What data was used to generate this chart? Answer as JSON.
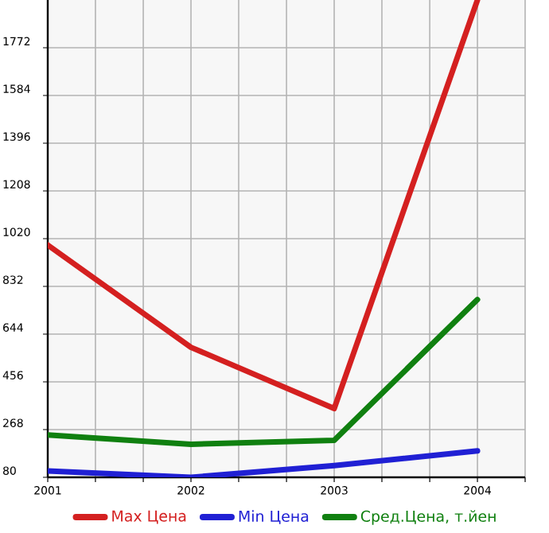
{
  "chart_data": {
    "type": "line",
    "x": [
      2001,
      2002,
      2003,
      2004
    ],
    "series": [
      {
        "name": "Max Цена",
        "color": "#d42020",
        "values": [
          995,
          592,
          351,
          1960
        ]
      },
      {
        "name": "Min Цена",
        "color": "#2020d4",
        "values": [
          105,
          80,
          126,
          184
        ]
      },
      {
        "name": "Сред.Цена, т.йен",
        "color": "#108010",
        "values": [
          247,
          210,
          226,
          780
        ]
      }
    ],
    "xlim": [
      2001,
      2004.333
    ],
    "xticks": [
      2001,
      {
        "value": 2001.333,
        "label": null
      },
      {
        "value": 2001.667,
        "label": null
      },
      2002,
      {
        "value": 2002.333,
        "label": null
      },
      {
        "value": 2002.667,
        "label": null
      },
      2003,
      {
        "value": 2003.333,
        "label": null
      },
      {
        "value": 2003.667,
        "label": null
      },
      2004,
      {
        "value": 2004.333,
        "label": null
      }
    ],
    "ylim": [
      80,
      1960
    ],
    "yticks": [
      80,
      268,
      456,
      644,
      832,
      1020,
      1208,
      1396,
      1584,
      1772
    ],
    "grid": true,
    "legend": "bottom",
    "marker": "none",
    "line_style": "solid"
  }
}
